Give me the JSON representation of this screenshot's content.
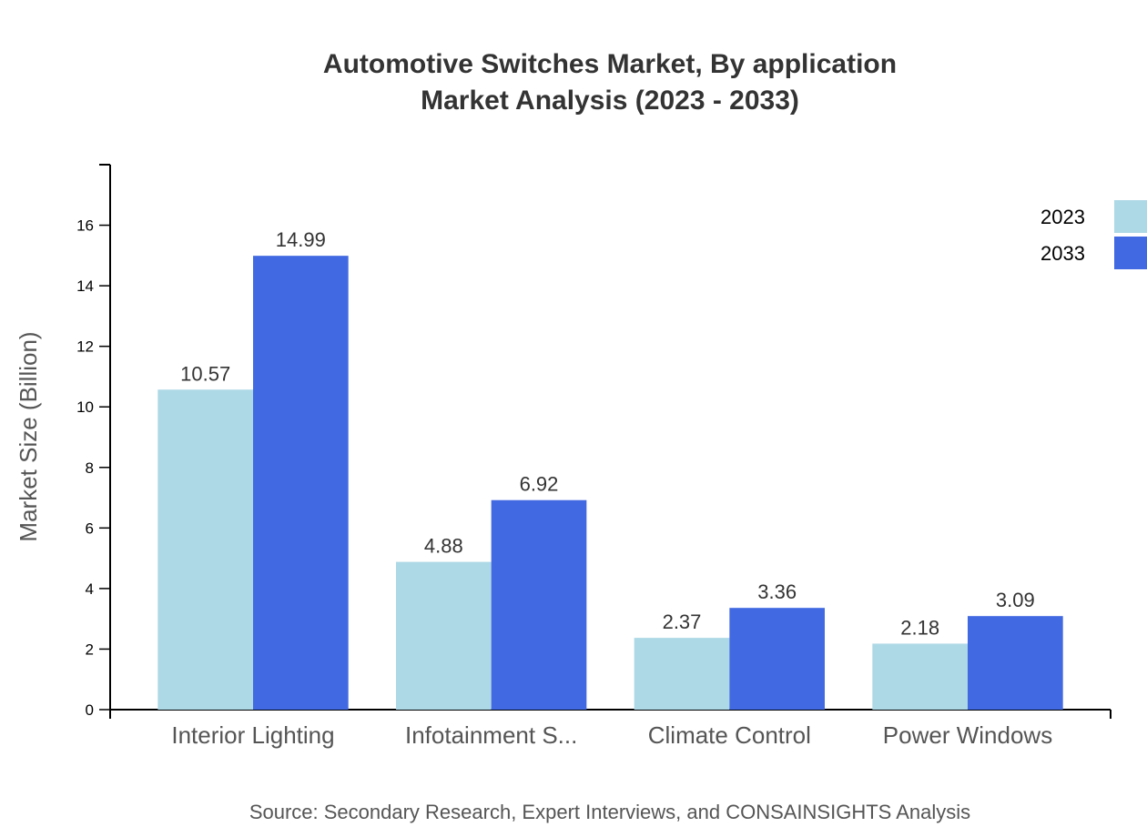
{
  "chart_data": {
    "type": "bar",
    "title": [
      "Automotive Switches Market, By application",
      "Market Analysis (2023 - 2033)"
    ],
    "xlabel": "",
    "ylabel": "Market Size (Billion)",
    "ylim": [
      0,
      18
    ],
    "yticks": [
      0,
      2,
      4,
      6,
      8,
      10,
      12,
      14,
      16
    ],
    "categories": [
      "Interior Lighting",
      "Infotainment S...",
      "Climate Control",
      "Power Windows"
    ],
    "series": [
      {
        "name": "2023",
        "color": "#ADD8E6",
        "values": [
          10.57,
          4.88,
          2.37,
          2.18
        ]
      },
      {
        "name": "2033",
        "color": "#4169E1",
        "values": [
          14.99,
          6.92,
          3.36,
          3.09
        ]
      }
    ],
    "grid": false,
    "legend_position": "top-right",
    "source": "Source: Secondary Research, Expert Interviews, and CONSAINSIGHTS Analysis"
  }
}
